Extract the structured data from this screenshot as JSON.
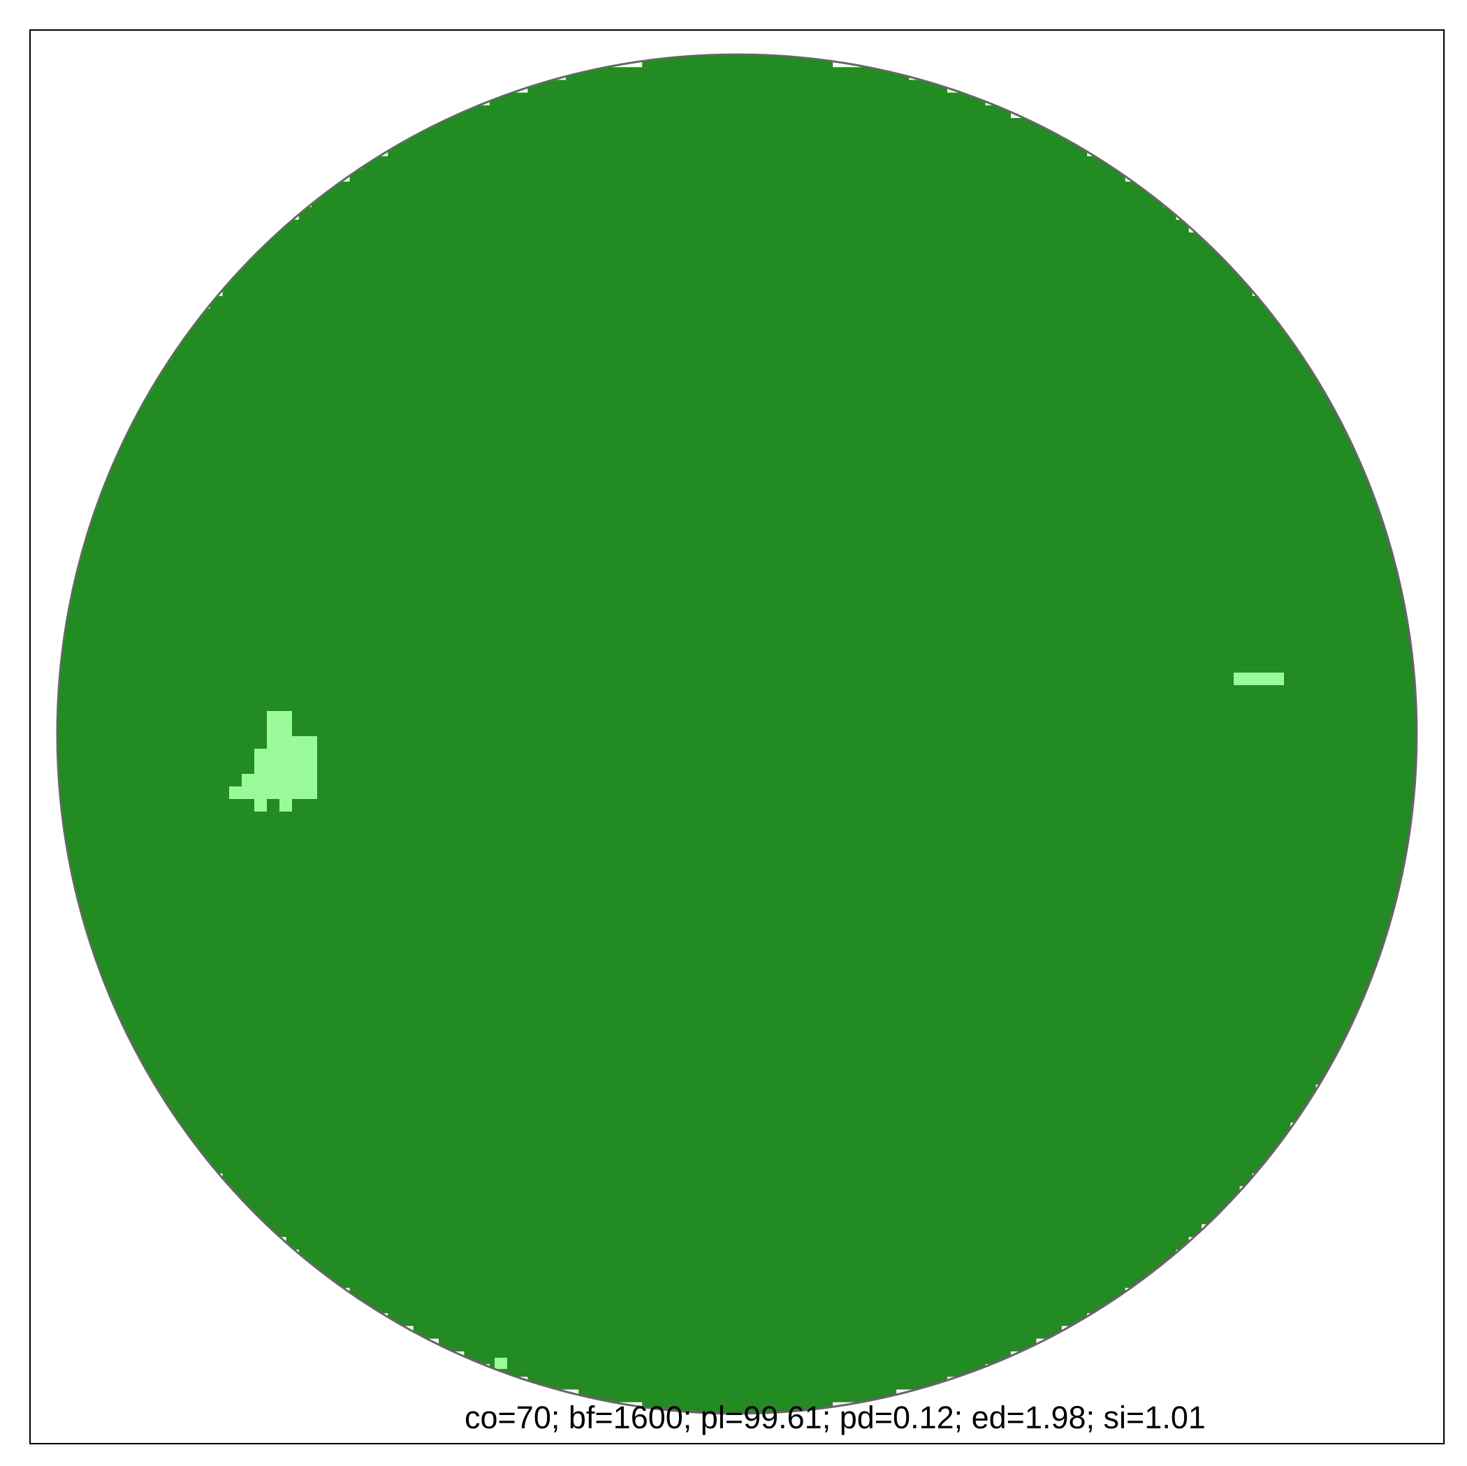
{
  "plot": {
    "caption": "co=70; bf=1600; pl=99.61; pd=0.12; ed=1.98; si=1.01",
    "colors": {
      "background": "#ffffff",
      "frame": "#000000",
      "boundary_circle": "#666666",
      "habitat": "#228b22",
      "non_habitat": "#9afa9a"
    }
  }
}
